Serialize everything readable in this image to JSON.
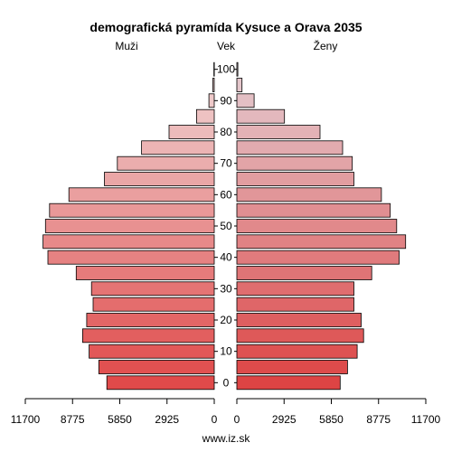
{
  "chart_data": {
    "type": "bar",
    "orientation": "population-pyramid",
    "title": "demografická pyramída Kysuce a Orava 2035",
    "left_label": "Muži",
    "center_label": "Vek",
    "right_label": "Ženy",
    "footer": "www.iz.sk",
    "age_groups": [
      "0",
      "5",
      "10",
      "15",
      "20",
      "25",
      "30",
      "35",
      "40",
      "45",
      "50",
      "55",
      "60",
      "65",
      "70",
      "75",
      "80",
      "85",
      "90",
      "95",
      "100"
    ],
    "age_ticks": [
      "0",
      "10",
      "20",
      "30",
      "40",
      "50",
      "60",
      "70",
      "80",
      "90",
      "100"
    ],
    "x_ticks_left": [
      "11700",
      "8775",
      "5850",
      "2925",
      "0"
    ],
    "x_ticks_right": [
      "0",
      "2925",
      "5850",
      "8775",
      "11700"
    ],
    "xlim": [
      0,
      11700
    ],
    "series": [
      {
        "name": "Muži",
        "values": [
          6650,
          7150,
          7750,
          8150,
          7900,
          7500,
          7600,
          8550,
          10300,
          10600,
          10450,
          10200,
          9000,
          6800,
          6000,
          4500,
          2800,
          1100,
          330,
          90,
          20
        ]
      },
      {
        "name": "Ženy",
        "values": [
          6400,
          6850,
          7450,
          7850,
          7700,
          7250,
          7250,
          8350,
          10050,
          10450,
          9900,
          9500,
          8950,
          7250,
          7150,
          6550,
          5150,
          2950,
          1070,
          320,
          60
        ]
      }
    ],
    "colors": {
      "male_base": "#e04a4a",
      "female_base": "#dd4444"
    }
  }
}
